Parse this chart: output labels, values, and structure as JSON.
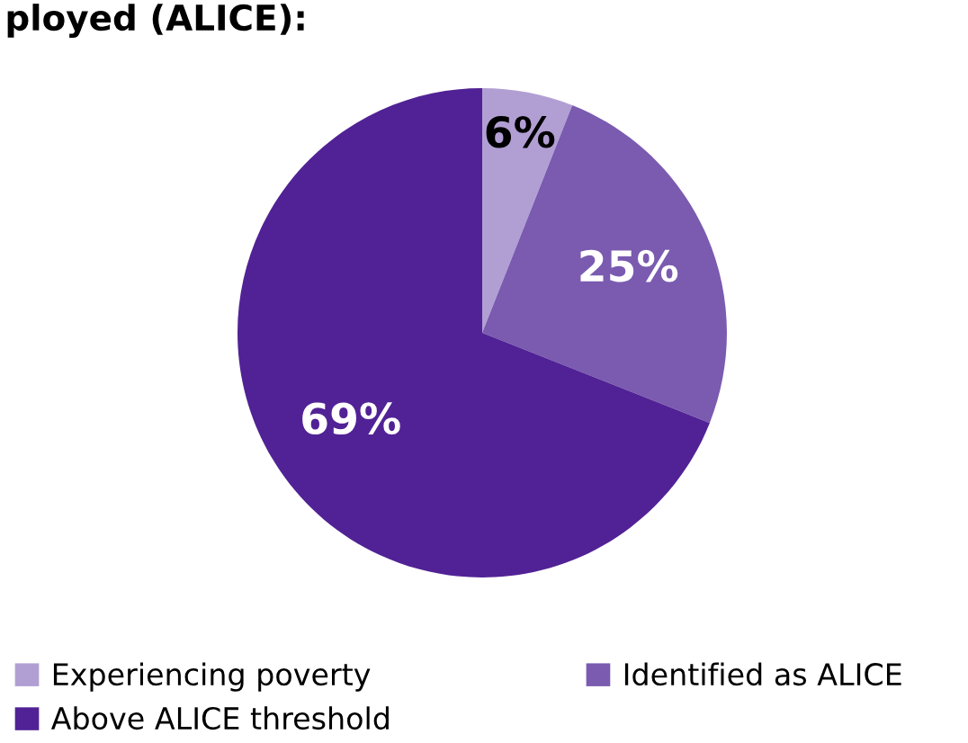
{
  "chart_data": {
    "type": "pie",
    "title": "ployed (ALICE):",
    "categories": [
      "Experiencing poverty",
      "Identified as ALICE",
      "Above ALICE threshold"
    ],
    "values": [
      6,
      25,
      69
    ],
    "colors": [
      "#b19fd3",
      "#7a5bb0",
      "#512295"
    ],
    "value_labels": [
      "6%",
      "25%",
      "69%"
    ],
    "legend": "bottom"
  }
}
